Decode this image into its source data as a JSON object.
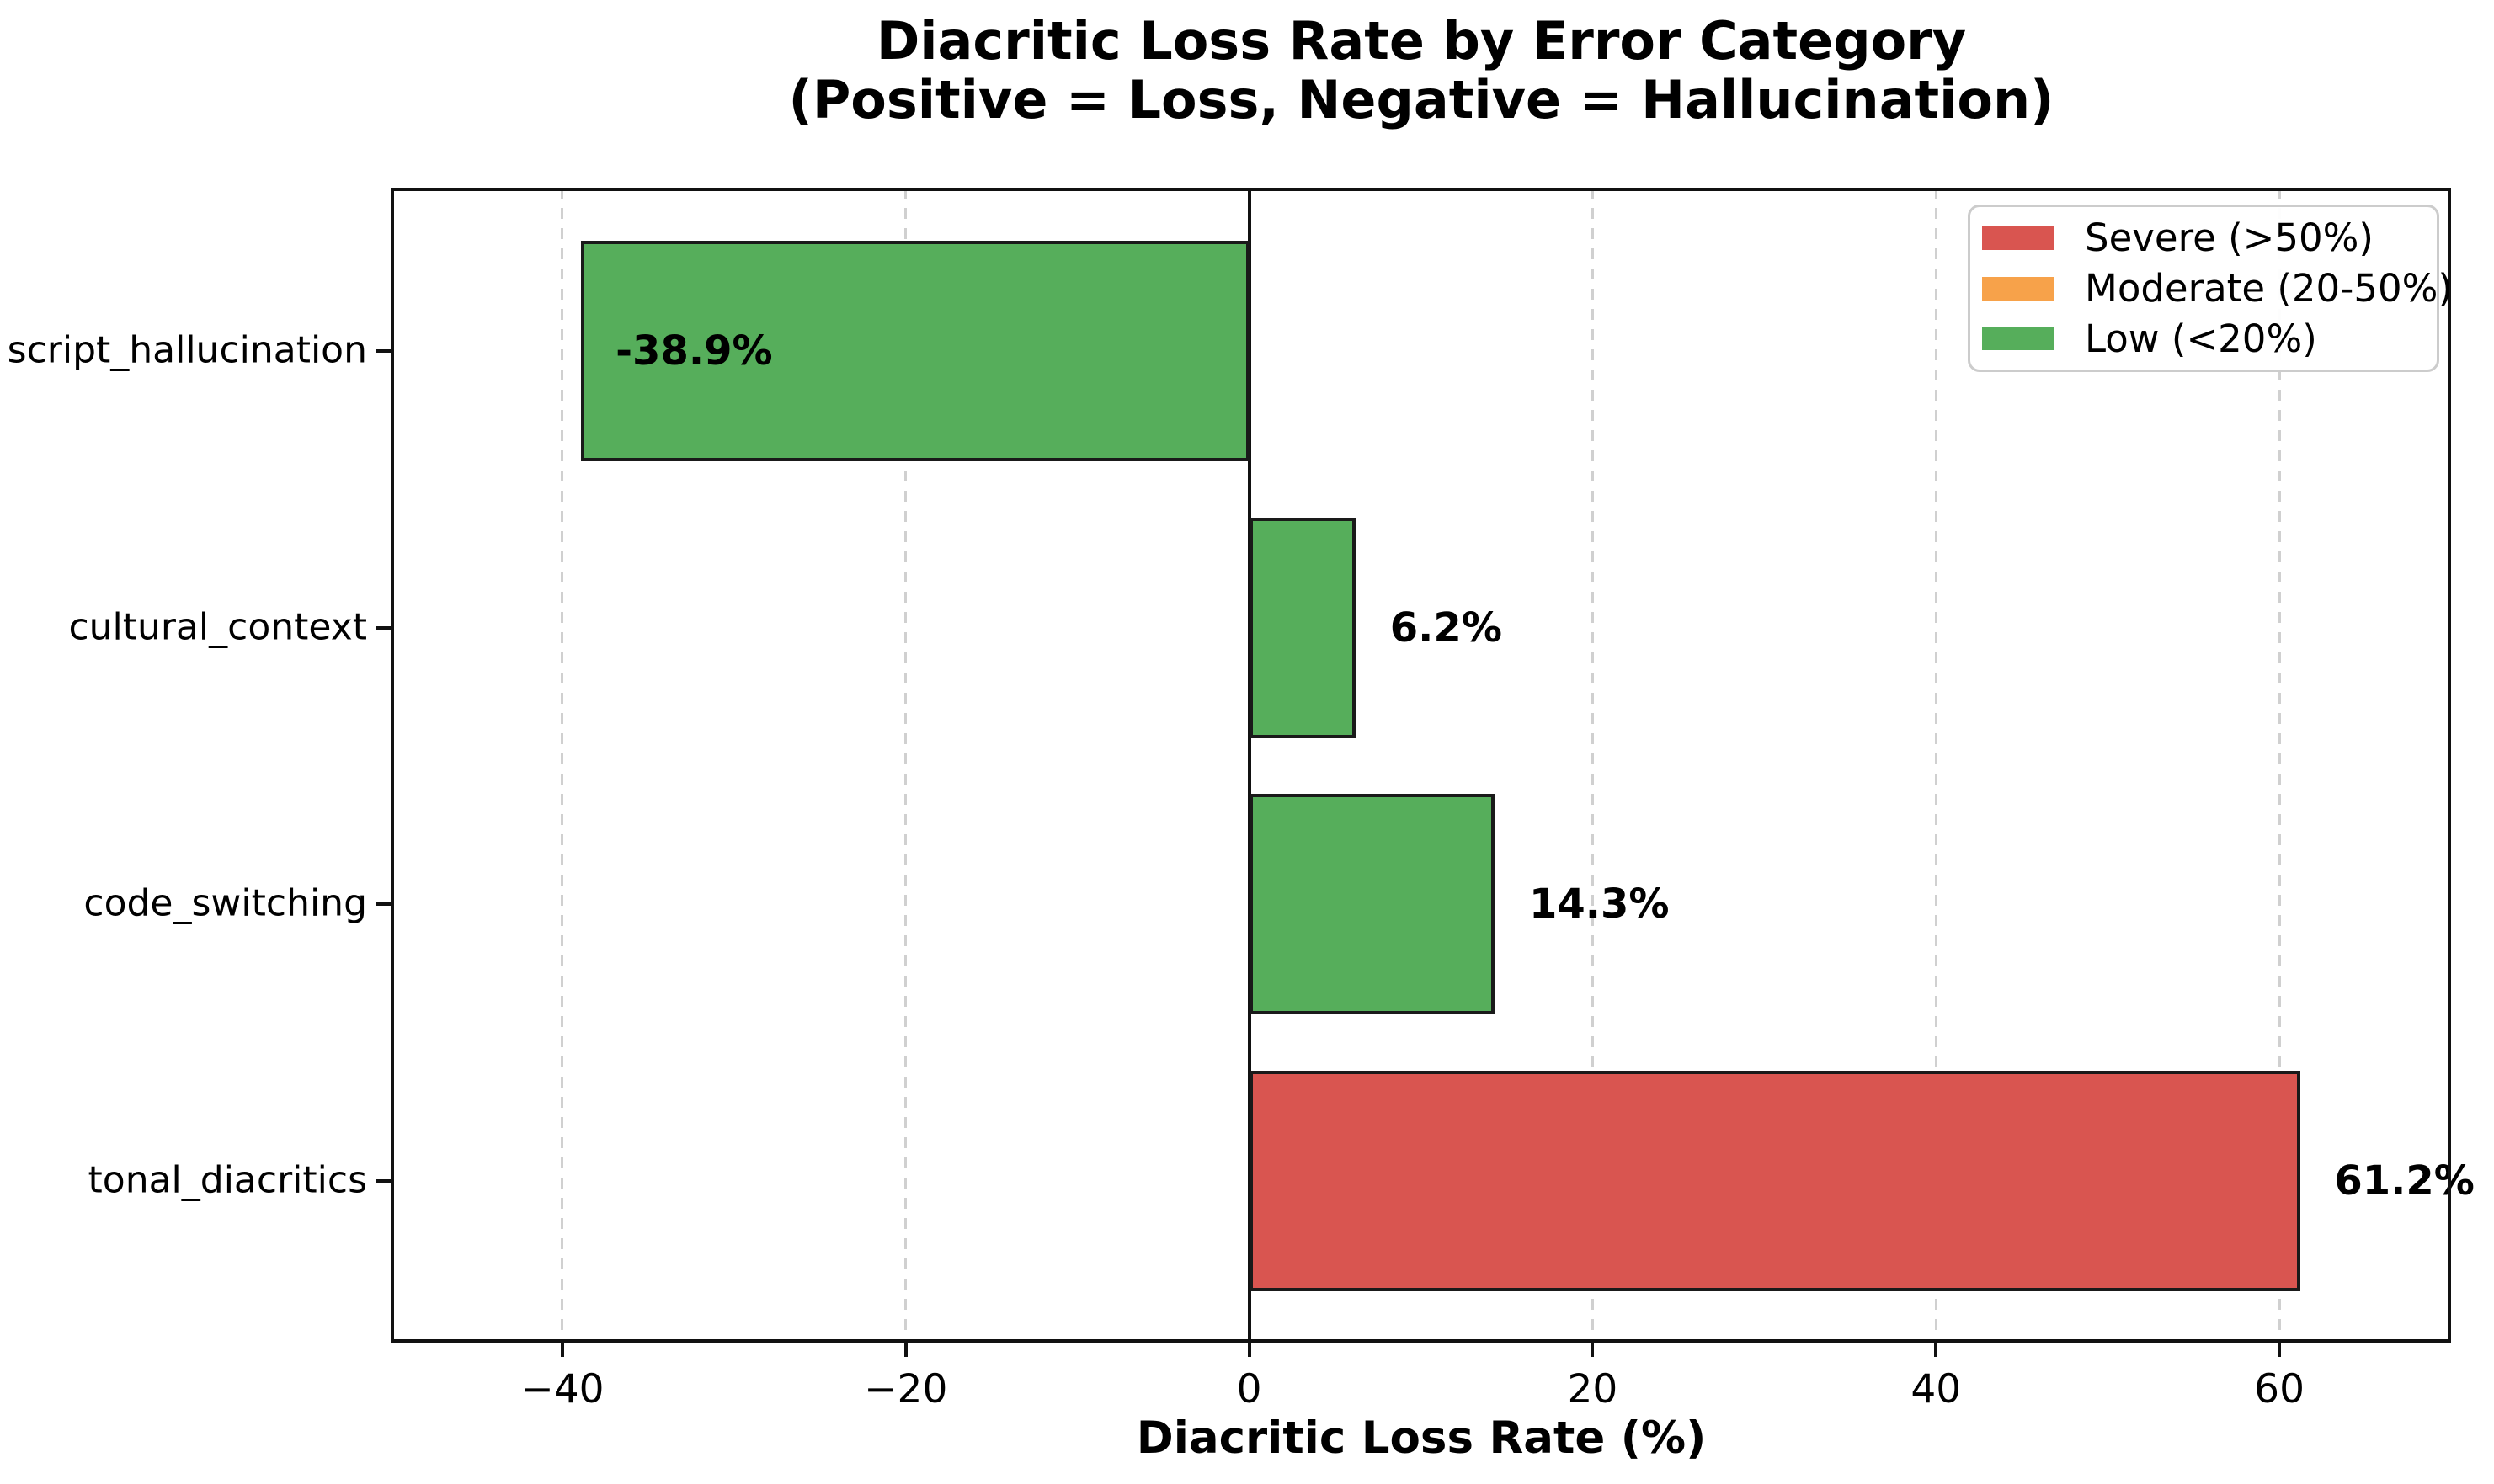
{
  "title": {
    "line1": "Diacritic Loss Rate by Error Category",
    "line2": "(Positive = Loss, Negative = Hallucination)"
  },
  "chart_data": {
    "type": "bar",
    "orientation": "horizontal",
    "title": "Diacritic Loss Rate by Error Category\n(Positive = Loss, Negative = Hallucination)",
    "xlabel": "Diacritic Loss Rate (%)",
    "ylabel": "",
    "categories": [
      "script_hallucination",
      "cultural_context",
      "code_switching",
      "tonal_diacritics"
    ],
    "values": [
      -38.9,
      6.2,
      14.3,
      61.2
    ],
    "bar_labels": [
      "-38.9%",
      "6.2%",
      "14.3%",
      "61.2%"
    ],
    "bar_colors": [
      "#56ae5b",
      "#56ae5b",
      "#56ae5b",
      "#d95550"
    ],
    "bar_edge_color": "#1a1a1a",
    "xlim": [
      -50,
      70
    ],
    "xticks": [
      -40,
      -20,
      0,
      20,
      40,
      60
    ],
    "xtick_labels": [
      "−40",
      "−20",
      "0",
      "20",
      "40",
      "60"
    ],
    "grid": "vertical-dashed",
    "grid_color": "#d0d0d0",
    "zero_line": true,
    "legend": {
      "position": "upper right",
      "entries": [
        {
          "label": "Severe (>50%)",
          "color": "#d95550"
        },
        {
          "label": "Moderate (20-50%)",
          "color": "#f7a24a"
        },
        {
          "label": "Low (<20%)",
          "color": "#56ae5b"
        }
      ]
    }
  }
}
